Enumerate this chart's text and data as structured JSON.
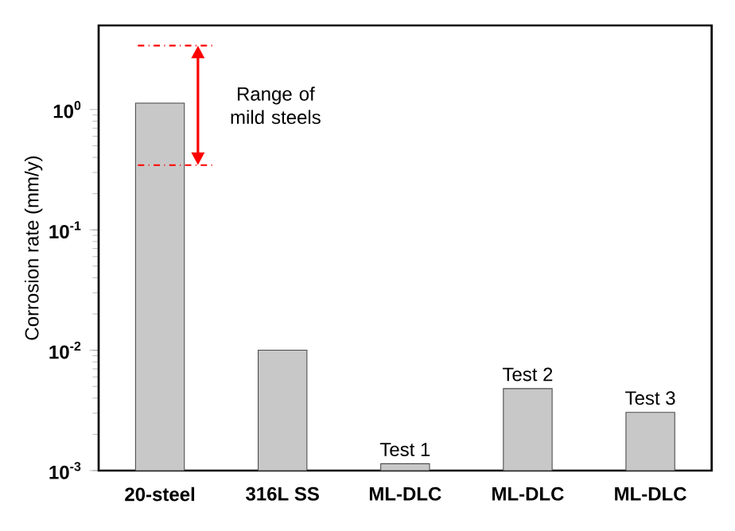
{
  "chart_data": {
    "type": "bar",
    "ylabel": "Corrosion rate (mm/y)",
    "categories": [
      "20-steel",
      "316L SS",
      "ML-DLC",
      "ML-DLC",
      "ML-DLC"
    ],
    "values": [
      1.13,
      0.01,
      0.00114,
      0.0048,
      0.00305
    ],
    "color": "#c8c8c8",
    "log": "y",
    "ylim": [
      0.001,
      5
    ],
    "yticks": [
      {
        "value": 0.001,
        "label": "10$^{-3}$"
      },
      {
        "value": 0.01,
        "label": "10$^{-2}$"
      },
      {
        "value": 0.1,
        "label": "10$^{-1}$"
      },
      {
        "value": 1,
        "label": "10$^{0}$"
      }
    ],
    "ref_lines": [
      {
        "axis": "y",
        "value": 3.4,
        "color": "#ff0000",
        "line_style": "dashdotted"
      },
      {
        "axis": "y",
        "value": 0.345,
        "color": "#ff0000",
        "line_style": "dashdotted"
      }
    ],
    "annotations": [
      "Range of mild steels",
      "Test 1",
      "Test 2",
      "Test 3"
    ],
    "grid": false
  }
}
